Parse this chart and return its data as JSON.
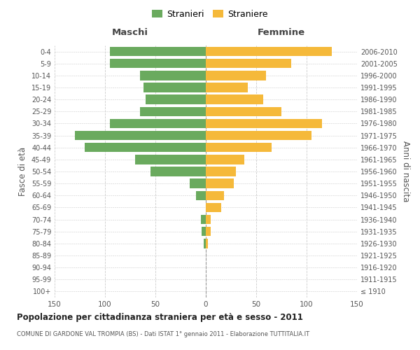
{
  "age_groups": [
    "100+",
    "95-99",
    "90-94",
    "85-89",
    "80-84",
    "75-79",
    "70-74",
    "65-69",
    "60-64",
    "55-59",
    "50-54",
    "45-49",
    "40-44",
    "35-39",
    "30-34",
    "25-29",
    "20-24",
    "15-19",
    "10-14",
    "5-9",
    "0-4"
  ],
  "birth_years": [
    "≤ 1910",
    "1911-1915",
    "1916-1920",
    "1921-1925",
    "1926-1930",
    "1931-1935",
    "1936-1940",
    "1941-1945",
    "1946-1950",
    "1951-1955",
    "1956-1960",
    "1961-1965",
    "1966-1970",
    "1971-1975",
    "1976-1980",
    "1981-1985",
    "1986-1990",
    "1991-1995",
    "1996-2000",
    "2001-2005",
    "2006-2010"
  ],
  "males": [
    0,
    0,
    0,
    0,
    2,
    4,
    5,
    0,
    10,
    16,
    55,
    70,
    120,
    130,
    95,
    65,
    60,
    62,
    65,
    95,
    95
  ],
  "females": [
    0,
    0,
    0,
    0,
    2,
    5,
    5,
    15,
    18,
    28,
    30,
    38,
    65,
    105,
    115,
    75,
    57,
    42,
    60,
    85,
    125
  ],
  "male_color": "#6aaa5e",
  "female_color": "#f5b93a",
  "background_color": "#ffffff",
  "grid_color": "#cccccc",
  "title": "Popolazione per cittadinanza straniera per età e sesso - 2011",
  "subtitle": "COMUNE DI GARDONE VAL TROMPIA (BS) - Dati ISTAT 1° gennaio 2011 - Elaborazione TUTTITALIA.IT",
  "xlabel_left": "Maschi",
  "xlabel_right": "Femmine",
  "ylabel_left": "Fasce di età",
  "ylabel_right": "Anni di nascita",
  "legend_male": "Stranieri",
  "legend_female": "Straniere",
  "xlim": 150
}
